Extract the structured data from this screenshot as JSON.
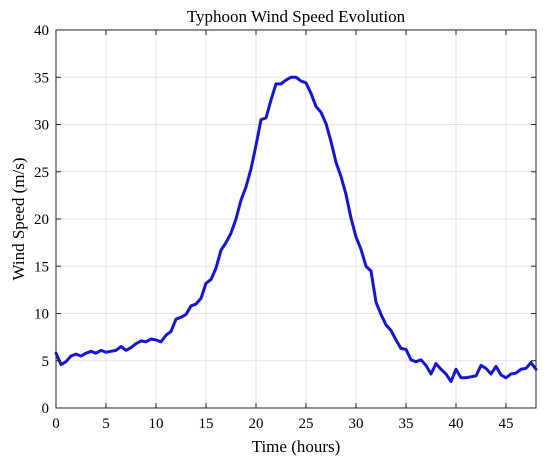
{
  "chart_data": {
    "type": "line",
    "title": "Typhoon Wind Speed Evolution",
    "xlabel": "Time (hours)",
    "ylabel": "Wind Speed (m/s)",
    "xlim": [
      0,
      48
    ],
    "ylim": [
      0,
      40
    ],
    "xticks": [
      0,
      5,
      10,
      15,
      20,
      25,
      30,
      35,
      40,
      45
    ],
    "yticks": [
      0,
      5,
      10,
      15,
      20,
      25,
      30,
      35,
      40
    ],
    "grid": true,
    "legend": "none",
    "series": [
      {
        "color": "#1515d8",
        "x": [
          0,
          0.5,
          1,
          1.5,
          2,
          2.5,
          3,
          3.5,
          4,
          4.5,
          5,
          5.5,
          6,
          6.5,
          7,
          7.5,
          8,
          8.5,
          9,
          9.5,
          10,
          10.5,
          11,
          11.5,
          12,
          12.5,
          13,
          13.5,
          14,
          14.5,
          15,
          15.5,
          16,
          16.5,
          17,
          17.5,
          18,
          18.5,
          19,
          19.5,
          20,
          20.5,
          21,
          21.5,
          22,
          22.5,
          23,
          23.5,
          24,
          24.5,
          25,
          25.5,
          26,
          26.5,
          27,
          27.5,
          28,
          28.5,
          29,
          29.5,
          30,
          30.5,
          31,
          31.5,
          32,
          32.5,
          33,
          33.5,
          34,
          34.5,
          35,
          35.5,
          36,
          36.5,
          37,
          37.5,
          38,
          38.5,
          39,
          39.5,
          40,
          40.5,
          41,
          41.5,
          42,
          42.5,
          43,
          43.5,
          44,
          44.5,
          45,
          45.5,
          46,
          46.5,
          47,
          47.5,
          48
        ],
        "y": [
          5.8,
          4.6,
          4.9,
          5.5,
          5.7,
          5.5,
          5.8,
          6.0,
          5.8,
          6.1,
          5.9,
          6.0,
          6.1,
          6.5,
          6.1,
          6.4,
          6.8,
          7.1,
          7.0,
          7.3,
          7.2,
          7.0,
          7.7,
          8.1,
          9.4,
          9.6,
          9.9,
          10.8,
          11.0,
          11.6,
          13.2,
          13.6,
          14.8,
          16.7,
          17.5,
          18.5,
          20.0,
          22.0,
          23.4,
          25.3,
          27.8,
          30.5,
          30.7,
          32.6,
          34.3,
          34.3,
          34.7,
          35.0,
          35.0,
          34.6,
          34.4,
          33.3,
          31.9,
          31.3,
          30.1,
          28.2,
          26.0,
          24.5,
          22.6,
          20.1,
          18.1,
          16.8,
          15.0,
          14.5,
          11.2,
          9.9,
          8.8,
          8.2,
          7.2,
          6.3,
          6.2,
          5.1,
          4.9,
          5.1,
          4.5,
          3.6,
          4.7,
          4.1,
          3.6,
          2.8,
          4.1,
          3.2,
          3.2,
          3.3,
          3.4,
          4.5,
          4.2,
          3.6,
          4.4,
          3.5,
          3.2,
          3.6,
          3.7,
          4.1,
          4.2,
          4.8,
          4.1
        ]
      }
    ]
  }
}
